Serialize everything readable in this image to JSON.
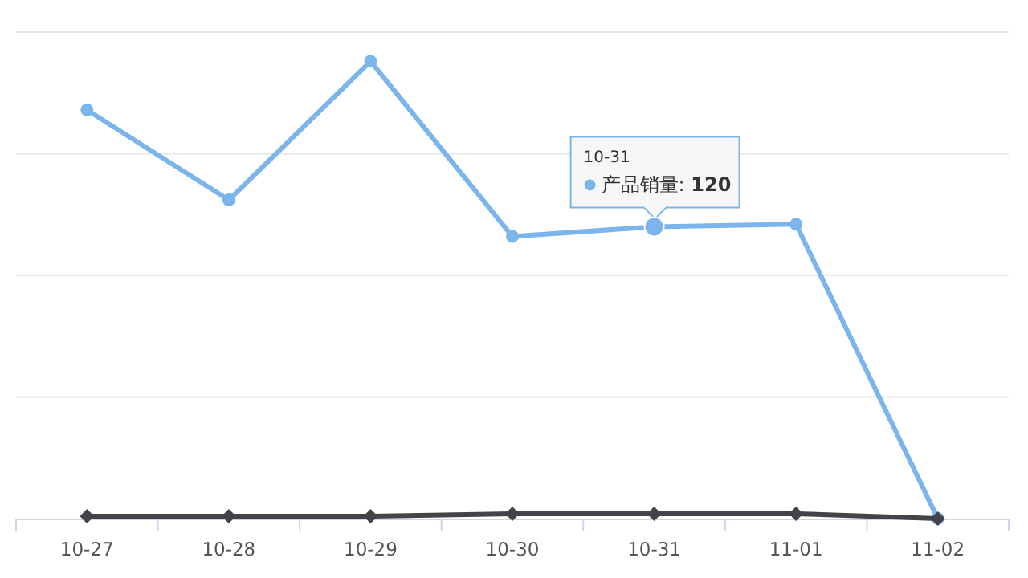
{
  "chart_data": {
    "type": "line",
    "categories": [
      "10-27",
      "10-28",
      "10-29",
      "10-30",
      "10-31",
      "11-01",
      "11-02"
    ],
    "series": [
      {
        "name": "产品销量:",
        "color": "#7cb5ec",
        "marker": "circle",
        "values": [
          168,
          131,
          188,
          116,
          120,
          121,
          0
        ],
        "value_labels": [
          null,
          null,
          null,
          null,
          "120",
          null,
          null
        ]
      },
      {
        "color": "#434348",
        "marker": "diamond",
        "values": [
          1,
          1,
          1,
          2,
          2,
          2,
          0
        ]
      }
    ],
    "ylim": [
      0,
      200
    ],
    "yticks": [
      {
        "value": 0,
        "label": null
      },
      {
        "value": 50,
        "label": null
      },
      {
        "value": 100,
        "label": null
      },
      {
        "value": 150,
        "label": null
      },
      {
        "value": 200,
        "label": null
      }
    ],
    "grid": "y",
    "tick_labels": "x",
    "annotations": [
      "10-31"
    ]
  }
}
